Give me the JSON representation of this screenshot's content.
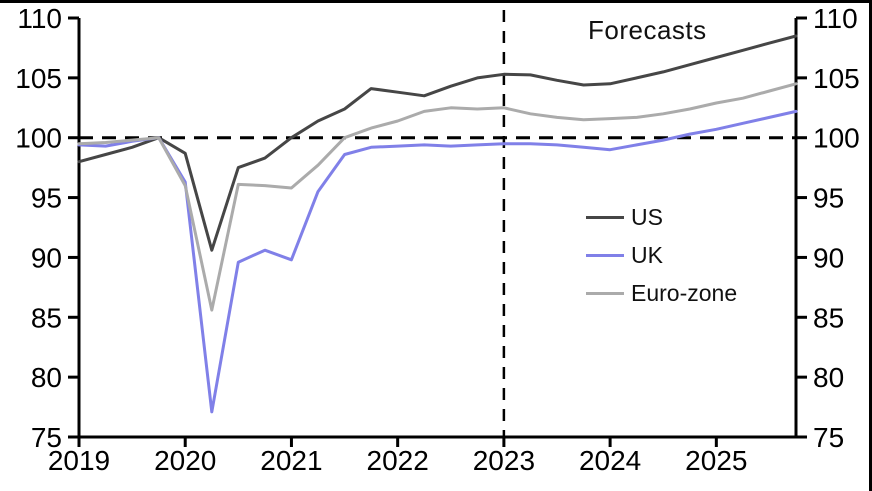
{
  "frame": {
    "background": "#ffffff",
    "border_color": "#000000"
  },
  "annotations": {
    "forecasts_label": "Forecasts"
  },
  "legend": {
    "position": "middle-right",
    "items": [
      {
        "label": "US",
        "color": "#464646"
      },
      {
        "label": "UK",
        "color": "#8080e8"
      },
      {
        "label": "Euro-zone",
        "color": "#ababab"
      }
    ]
  },
  "chart_data": {
    "type": "line",
    "title": "",
    "xlabel": "",
    "ylabel": "",
    "ylim": [
      75,
      110
    ],
    "grid": false,
    "y_axis": {
      "sides": "both",
      "ticks": [
        75,
        80,
        85,
        90,
        95,
        100,
        105,
        110
      ]
    },
    "x_axis": {
      "ticks": [
        "2019",
        "2020",
        "2021",
        "2022",
        "2023",
        "2024",
        "2025"
      ],
      "quarters_per_year": 4
    },
    "reference_lines": {
      "horizontal_value": 100,
      "vertical_at_category_index": 16,
      "vertical_category": "2023 Q1"
    },
    "forecast_start_index": 16,
    "categories": [
      "2019 Q1",
      "2019 Q2",
      "2019 Q3",
      "2019 Q4",
      "2020 Q1",
      "2020 Q2",
      "2020 Q3",
      "2020 Q4",
      "2021 Q1",
      "2021 Q2",
      "2021 Q3",
      "2021 Q4",
      "2022 Q1",
      "2022 Q2",
      "2022 Q3",
      "2022 Q4",
      "2023 Q1",
      "2023 Q2",
      "2023 Q3",
      "2023 Q4",
      "2024 Q1",
      "2024 Q2",
      "2024 Q3",
      "2024 Q4",
      "2025 Q1",
      "2025 Q2",
      "2025 Q3",
      "2025 Q4"
    ],
    "series": [
      {
        "name": "US",
        "color": "#464646",
        "values": [
          98.0,
          98.6,
          99.2,
          100.0,
          98.7,
          90.6,
          97.5,
          98.3,
          100.0,
          101.4,
          102.4,
          104.1,
          103.8,
          103.5,
          104.3,
          105.0,
          105.3,
          105.25,
          104.8,
          104.4,
          104.5,
          105.0,
          105.5,
          106.1,
          106.7,
          107.3,
          107.9,
          108.5
        ]
      },
      {
        "name": "UK",
        "color": "#8080e8",
        "values": [
          99.4,
          99.3,
          99.7,
          100.0,
          96.3,
          77.1,
          89.6,
          90.6,
          89.8,
          95.5,
          98.6,
          99.2,
          99.3,
          99.4,
          99.3,
          99.4,
          99.5,
          99.5,
          99.4,
          99.2,
          99.0,
          99.4,
          99.8,
          100.3,
          100.7,
          101.2,
          101.7,
          102.2
        ]
      },
      {
        "name": "Euro-zone",
        "color": "#ababab",
        "values": [
          99.5,
          99.6,
          99.8,
          100.0,
          96.0,
          85.6,
          96.1,
          96.0,
          95.8,
          97.7,
          100.0,
          100.8,
          101.4,
          102.2,
          102.5,
          102.4,
          102.5,
          102.0,
          101.7,
          101.5,
          101.6,
          101.7,
          102.0,
          102.4,
          102.9,
          103.3,
          103.9,
          104.5
        ]
      }
    ]
  }
}
